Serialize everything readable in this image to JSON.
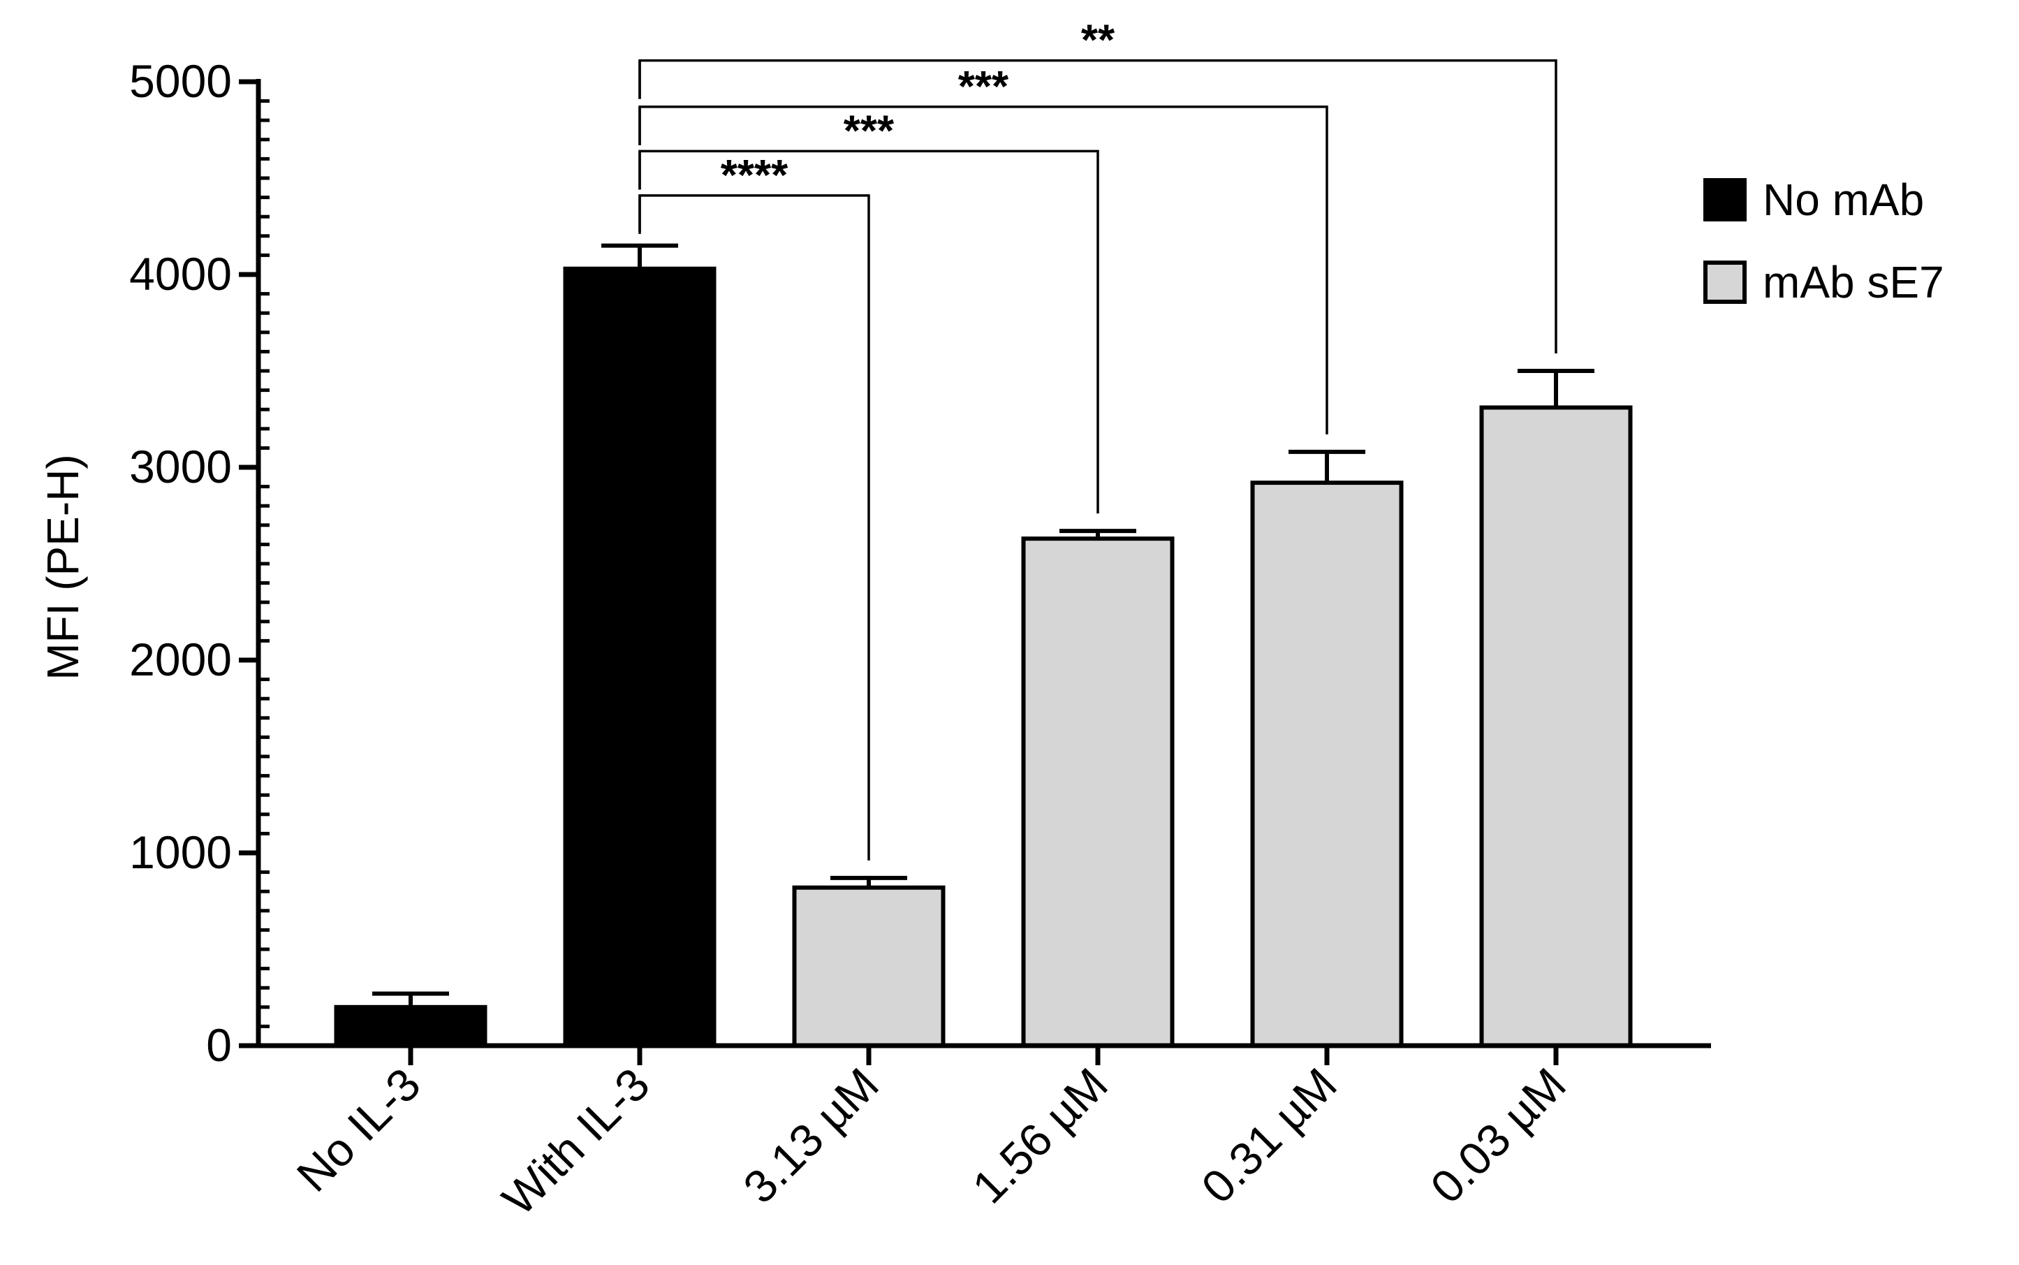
{
  "chart_data": {
    "type": "bar",
    "title": "",
    "xlabel": "",
    "ylabel": "MFI (PE-H)",
    "ylim": [
      0,
      5000
    ],
    "yticks": [
      0,
      1000,
      2000,
      3000,
      4000,
      5000
    ],
    "ytick_labels": [
      "0",
      "1000",
      "2000",
      "3000",
      "4000",
      "5000"
    ],
    "minor_ytick_step": 100,
    "categories": [
      "No IL-3",
      "With IL-3",
      "3.13 µM",
      "1.56 µM",
      "0.31 µM",
      "0.03 µM"
    ],
    "values": [
      200,
      4030,
      820,
      2630,
      2920,
      3310
    ],
    "errors": [
      70,
      120,
      50,
      40,
      160,
      190
    ],
    "category_series": [
      "No mAb",
      "No mAb",
      "mAb sE7",
      "mAb sE7",
      "mAb sE7",
      "mAb sE7"
    ],
    "series": [
      {
        "name": "No mAb",
        "color": "#000000"
      },
      {
        "name": "mAb sE7",
        "color": "#d6d6d6"
      }
    ],
    "significance": [
      {
        "from": 1,
        "to": 2,
        "label": "****",
        "bracket_y": 4410
      },
      {
        "from": 1,
        "to": 3,
        "label": "***",
        "bracket_y": 4640
      },
      {
        "from": 1,
        "to": 4,
        "label": "***",
        "bracket_y": 4870
      },
      {
        "from": 1,
        "to": 5,
        "label": "**",
        "bracket_y": 5110
      }
    ],
    "legend_position": "top-right",
    "grid": false
  }
}
